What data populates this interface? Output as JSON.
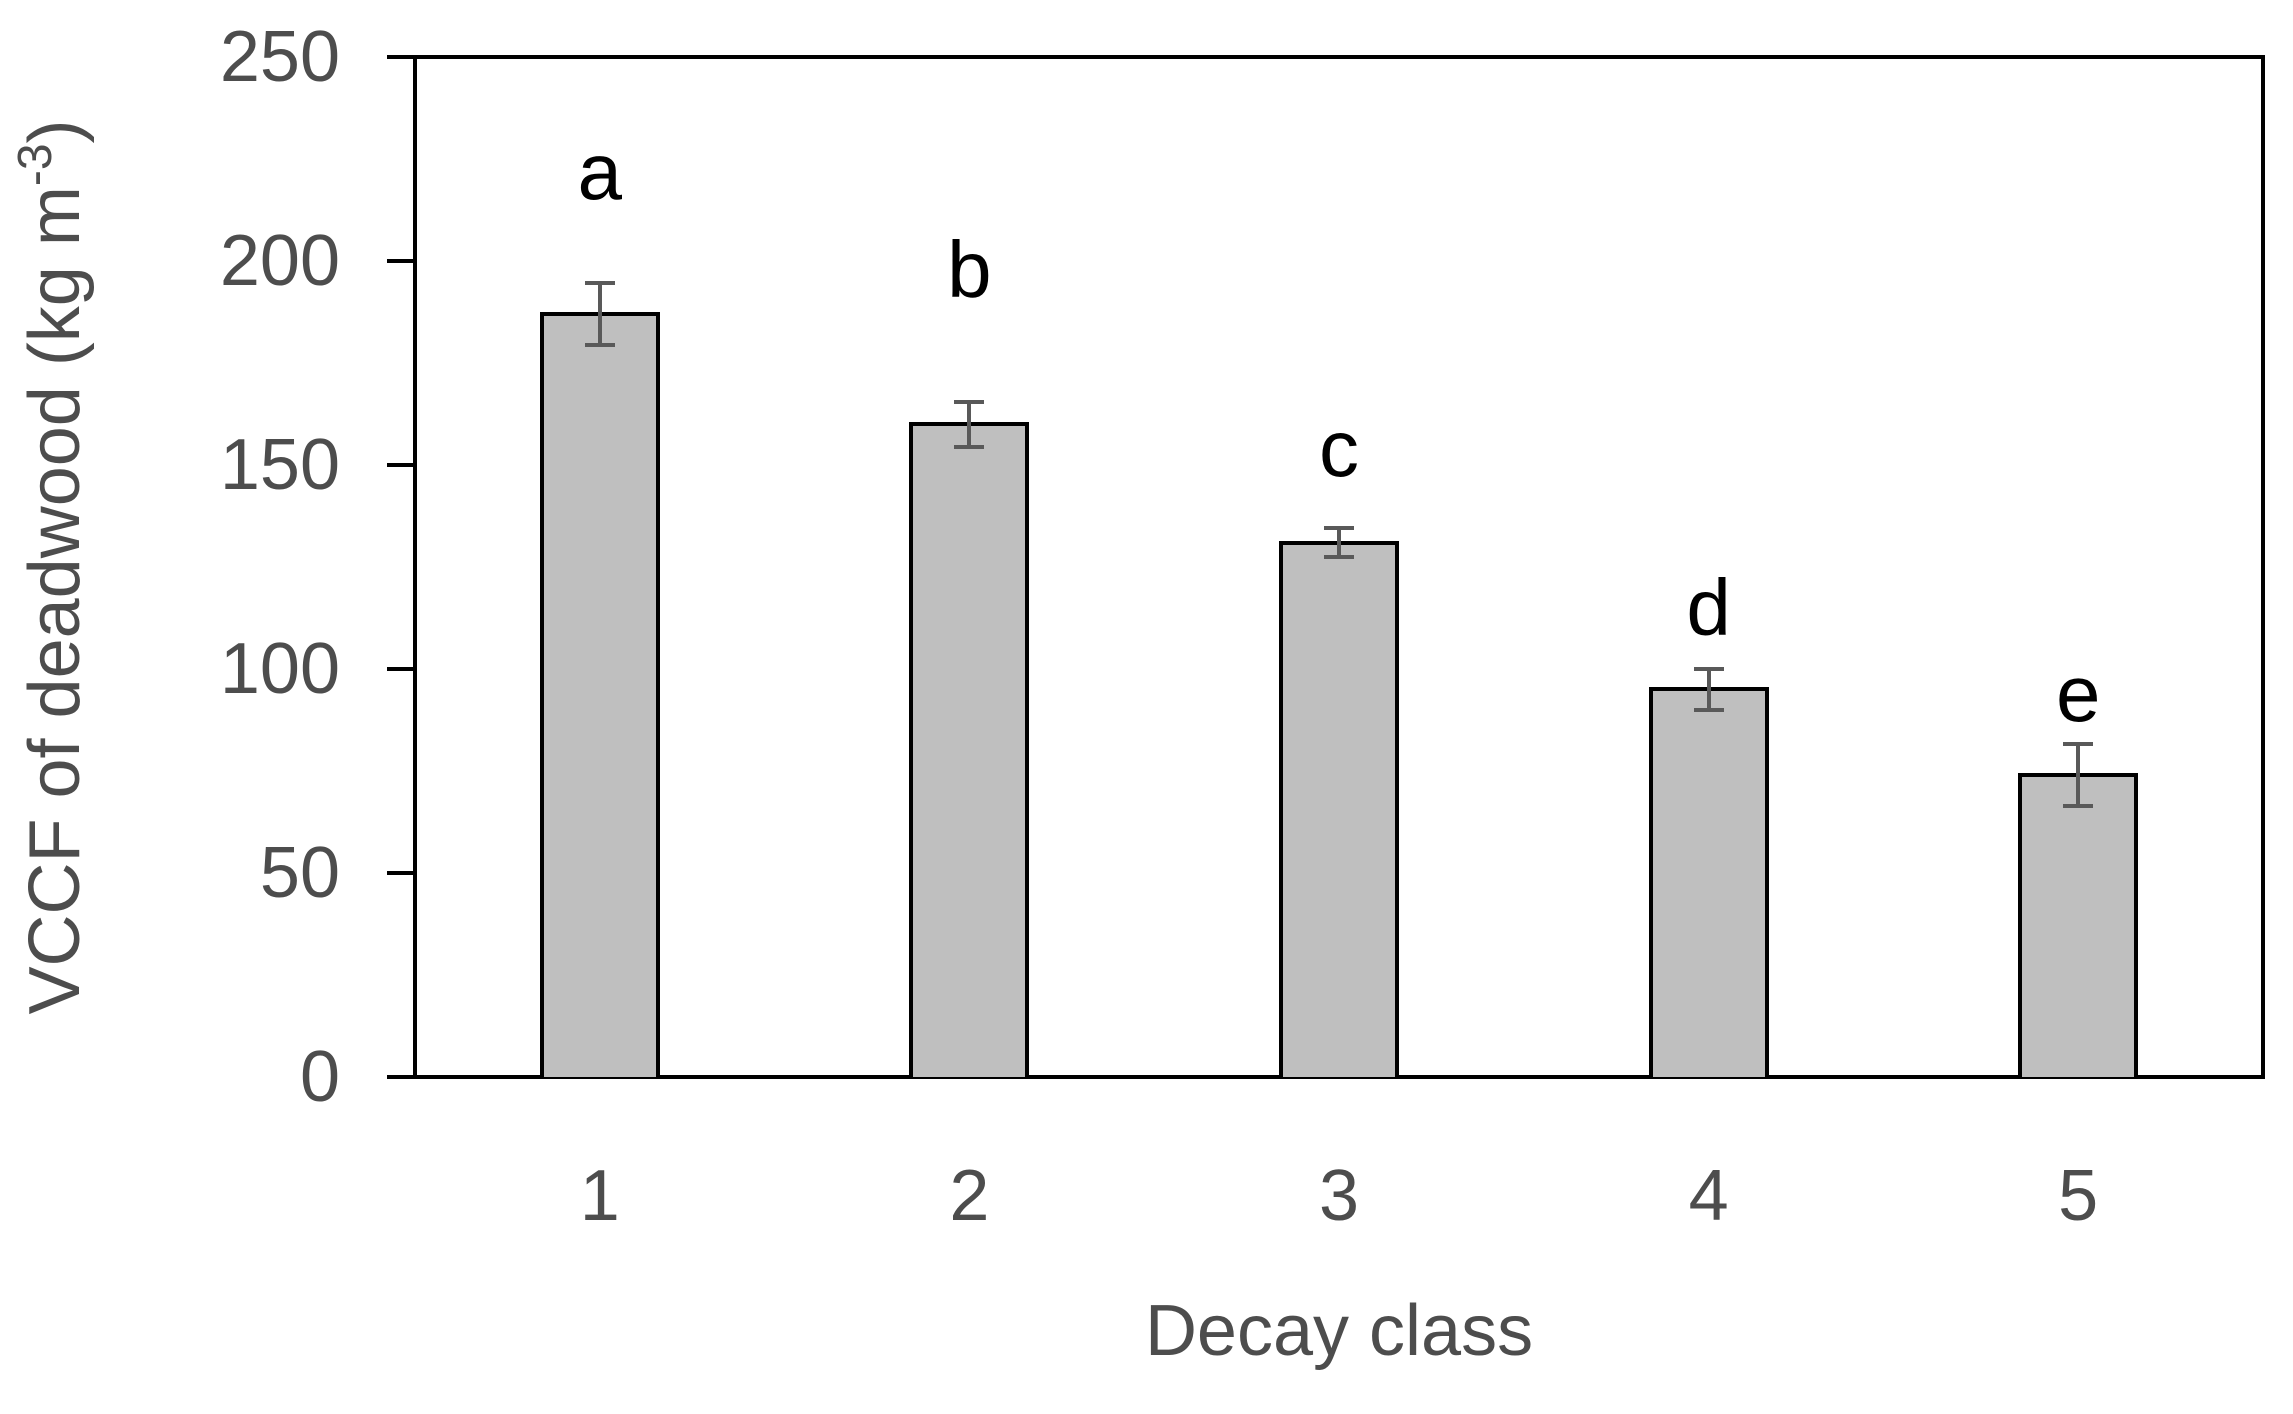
{
  "figure": {
    "background": "#ffffff"
  },
  "chart_data": {
    "type": "bar",
    "title": "",
    "xlabel": "Decay class",
    "ylabel": "VCCF of deadwood (kg m⁻³)",
    "ylabel_parts": {
      "prefix": "VCCF of deadwood (kg m",
      "superscript": "-3",
      "suffix": ")"
    },
    "categories": [
      "1",
      "2",
      "3",
      "4",
      "5"
    ],
    "values": [
      187,
      160,
      131,
      95,
      74
    ],
    "errors": [
      7.5,
      5.5,
      3.5,
      5,
      7.5
    ],
    "annotations": [
      {
        "label": "a",
        "category": "1",
        "y": 214
      },
      {
        "label": "b",
        "category": "2",
        "y": 190
      },
      {
        "label": "c",
        "category": "3",
        "y": 146
      },
      {
        "label": "d",
        "category": "4",
        "y": 107
      },
      {
        "label": "e",
        "category": "5",
        "y": 86
      }
    ],
    "ylim": [
      0,
      250
    ],
    "yticks": [
      0,
      50,
      100,
      150,
      200,
      250
    ],
    "grid": false,
    "legend": false,
    "colors": {
      "bar_fill": "#bfbfbf",
      "bar_border": "#000000",
      "error_bar": "#595959",
      "axis_text": "#4d4d4d",
      "annotation_text": "#000000",
      "frame": "#000000"
    }
  }
}
